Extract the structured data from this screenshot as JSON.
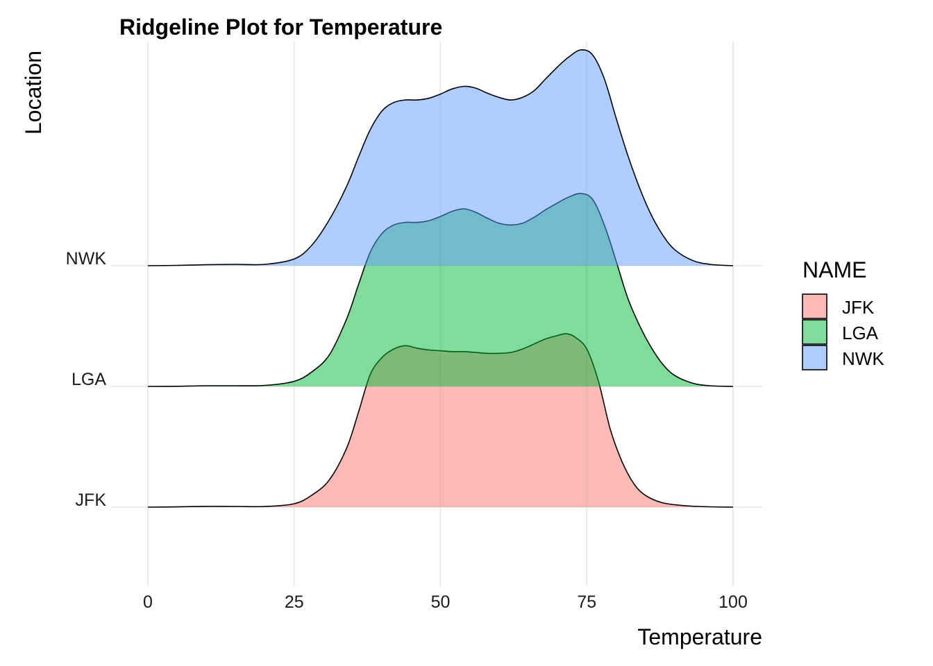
{
  "chart_data": {
    "type": "ridgeline",
    "title": "Ridgeline Plot for Temperature",
    "xlabel": "Temperature",
    "ylabel": "Location",
    "xlim": [
      -5,
      105
    ],
    "xticks": [
      "0",
      "25",
      "50",
      "75",
      "100"
    ],
    "xtick_values": [
      0,
      25,
      50,
      75,
      100
    ],
    "categories": [
      "JFK",
      "LGA",
      "NWK"
    ],
    "grid": true,
    "legend": {
      "title": "NAME",
      "position": "right"
    },
    "fill_opacity": 0.5,
    "series": [
      {
        "name": "JFK",
        "color": "#F8766D",
        "points": [
          [
            0,
            0.0
          ],
          [
            5,
            0.0015
          ],
          [
            10,
            0.0045
          ],
          [
            15,
            0.004
          ],
          [
            20,
            0.004
          ],
          [
            25,
            0.02
          ],
          [
            28,
            0.07
          ],
          [
            31,
            0.16
          ],
          [
            34,
            0.35
          ],
          [
            36,
            0.56
          ],
          [
            38,
            0.78
          ],
          [
            40,
            0.88
          ],
          [
            42,
            0.93
          ],
          [
            44,
            0.95
          ],
          [
            46,
            0.935
          ],
          [
            48,
            0.925
          ],
          [
            50,
            0.92
          ],
          [
            52,
            0.915
          ],
          [
            54,
            0.915
          ],
          [
            56,
            0.91
          ],
          [
            58,
            0.905
          ],
          [
            60,
            0.905
          ],
          [
            62,
            0.91
          ],
          [
            64,
            0.93
          ],
          [
            66,
            0.96
          ],
          [
            68,
            0.99
          ],
          [
            70,
            1.01
          ],
          [
            71.5,
            1.02
          ],
          [
            73,
            1.0
          ],
          [
            75,
            0.93
          ],
          [
            77,
            0.74
          ],
          [
            79,
            0.46
          ],
          [
            81,
            0.27
          ],
          [
            83,
            0.14
          ],
          [
            85,
            0.07
          ],
          [
            88,
            0.025
          ],
          [
            92,
            0.008
          ],
          [
            96,
            0.002
          ],
          [
            100,
            0.0
          ]
        ]
      },
      {
        "name": "LGA",
        "color": "#00BA38",
        "points": [
          [
            0,
            0.0
          ],
          [
            5,
            0.001
          ],
          [
            10,
            0.004
          ],
          [
            15,
            0.004
          ],
          [
            20,
            0.006
          ],
          [
            25,
            0.03
          ],
          [
            28,
            0.085
          ],
          [
            31,
            0.185
          ],
          [
            34,
            0.4
          ],
          [
            36,
            0.6
          ],
          [
            38,
            0.79
          ],
          [
            40,
            0.9
          ],
          [
            42,
            0.95
          ],
          [
            44,
            0.965
          ],
          [
            46,
            0.965
          ],
          [
            48,
            0.975
          ],
          [
            50,
            1.0
          ],
          [
            52,
            1.03
          ],
          [
            54,
            1.045
          ],
          [
            56,
            1.025
          ],
          [
            58,
            0.99
          ],
          [
            60,
            0.96
          ],
          [
            62,
            0.95
          ],
          [
            64,
            0.96
          ],
          [
            66,
            0.995
          ],
          [
            68,
            1.04
          ],
          [
            70,
            1.08
          ],
          [
            72,
            1.115
          ],
          [
            74,
            1.135
          ],
          [
            76,
            1.1
          ],
          [
            78,
            0.95
          ],
          [
            80,
            0.74
          ],
          [
            82,
            0.52
          ],
          [
            84,
            0.36
          ],
          [
            86,
            0.23
          ],
          [
            88,
            0.13
          ],
          [
            90,
            0.065
          ],
          [
            93,
            0.02
          ],
          [
            96,
            0.004
          ],
          [
            100,
            0.0
          ]
        ]
      },
      {
        "name": "NWK",
        "color": "#619CFF",
        "points": [
          [
            0,
            0.0
          ],
          [
            5,
            0.002
          ],
          [
            10,
            0.006
          ],
          [
            15,
            0.008
          ],
          [
            20,
            0.008
          ],
          [
            25,
            0.04
          ],
          [
            28,
            0.12
          ],
          [
            31,
            0.27
          ],
          [
            34,
            0.47
          ],
          [
            36,
            0.64
          ],
          [
            38,
            0.8
          ],
          [
            40,
            0.91
          ],
          [
            42,
            0.96
          ],
          [
            44,
            0.975
          ],
          [
            46,
            0.975
          ],
          [
            48,
            0.985
          ],
          [
            50,
            1.01
          ],
          [
            52,
            1.04
          ],
          [
            54,
            1.055
          ],
          [
            56,
            1.045
          ],
          [
            58,
            1.015
          ],
          [
            60,
            0.99
          ],
          [
            62,
            0.975
          ],
          [
            64,
            0.99
          ],
          [
            66,
            1.03
          ],
          [
            68,
            1.1
          ],
          [
            70,
            1.17
          ],
          [
            72,
            1.23
          ],
          [
            74,
            1.27
          ],
          [
            76,
            1.24
          ],
          [
            78,
            1.1
          ],
          [
            80,
            0.87
          ],
          [
            82,
            0.65
          ],
          [
            84,
            0.46
          ],
          [
            86,
            0.3
          ],
          [
            88,
            0.18
          ],
          [
            90,
            0.095
          ],
          [
            93,
            0.032
          ],
          [
            96,
            0.008
          ],
          [
            100,
            0.0
          ]
        ]
      }
    ]
  }
}
